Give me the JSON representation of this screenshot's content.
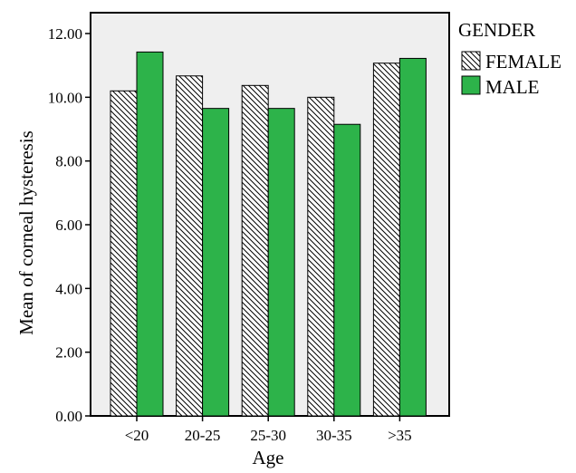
{
  "chart_data": {
    "type": "bar",
    "title": "",
    "xlabel": "Age",
    "ylabel": "Mean of corneal hysteresis",
    "categories": [
      "<20",
      "20-25",
      "25-30",
      "30-35",
      ">35"
    ],
    "series": [
      {
        "name": "FEMALE",
        "values": [
          10.2,
          10.67,
          10.37,
          10.0,
          11.07
        ],
        "fill": "hatch"
      },
      {
        "name": "MALE",
        "values": [
          11.42,
          9.65,
          9.65,
          9.15,
          11.22
        ],
        "fill": "#2db34a"
      }
    ],
    "ylim": [
      0,
      13
    ],
    "yticks": [
      "0.00",
      "2.00",
      "4.00",
      "6.00",
      "8.00",
      "10.00",
      "12.00"
    ],
    "legend": {
      "title": "GENDER",
      "placement": "right"
    },
    "grid": false,
    "colors": {
      "plot_background": "#efefef",
      "male": "#2db34a",
      "axis": "#000000"
    }
  }
}
